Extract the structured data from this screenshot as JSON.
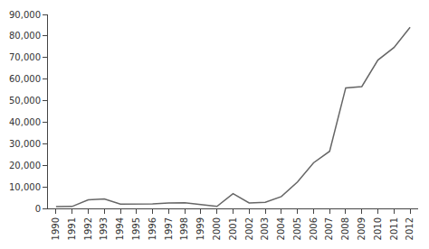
{
  "chart_data": {
    "type": "line",
    "x": [
      1990,
      1991,
      1992,
      1993,
      1994,
      1995,
      1996,
      1997,
      1998,
      1999,
      2000,
      2001,
      2002,
      2003,
      2004,
      2005,
      2006,
      2007,
      2008,
      2009,
      2010,
      2011,
      2012
    ],
    "values": [
      830,
      900,
      4000,
      4400,
      2000,
      2000,
      2114,
      2562,
      2634,
      1774,
      916,
      6885,
      2518,
      2855,
      5498,
      12261,
      21160,
      26506,
      55907,
      56529,
      68811,
      74654,
      84000
    ],
    "color": "#666666",
    "xlim": [
      1989.5,
      2012.5
    ],
    "xticks": [
      1990,
      1991,
      1992,
      1993,
      1994,
      1995,
      1996,
      1997,
      1998,
      1999,
      2000,
      2001,
      2002,
      2003,
      2004,
      2005,
      2006,
      2007,
      2008,
      2009,
      2010,
      2011,
      2012
    ],
    "ylim": [
      0,
      90000
    ],
    "yticks": [
      0,
      {
        "value": 10000,
        "label": "10,000"
      },
      {
        "value": 20000,
        "label": "20,000"
      },
      {
        "value": 30000,
        "label": "30,000"
      },
      {
        "value": 40000,
        "label": "40,000"
      },
      {
        "value": 50000,
        "label": "50,000"
      },
      {
        "value": 60000,
        "label": "60,000"
      },
      {
        "value": 70000,
        "label": "70,000"
      },
      {
        "value": 80000,
        "label": "80,000"
      },
      {
        "value": 90000,
        "label": "90,000"
      }
    ],
    "grid": false
  }
}
